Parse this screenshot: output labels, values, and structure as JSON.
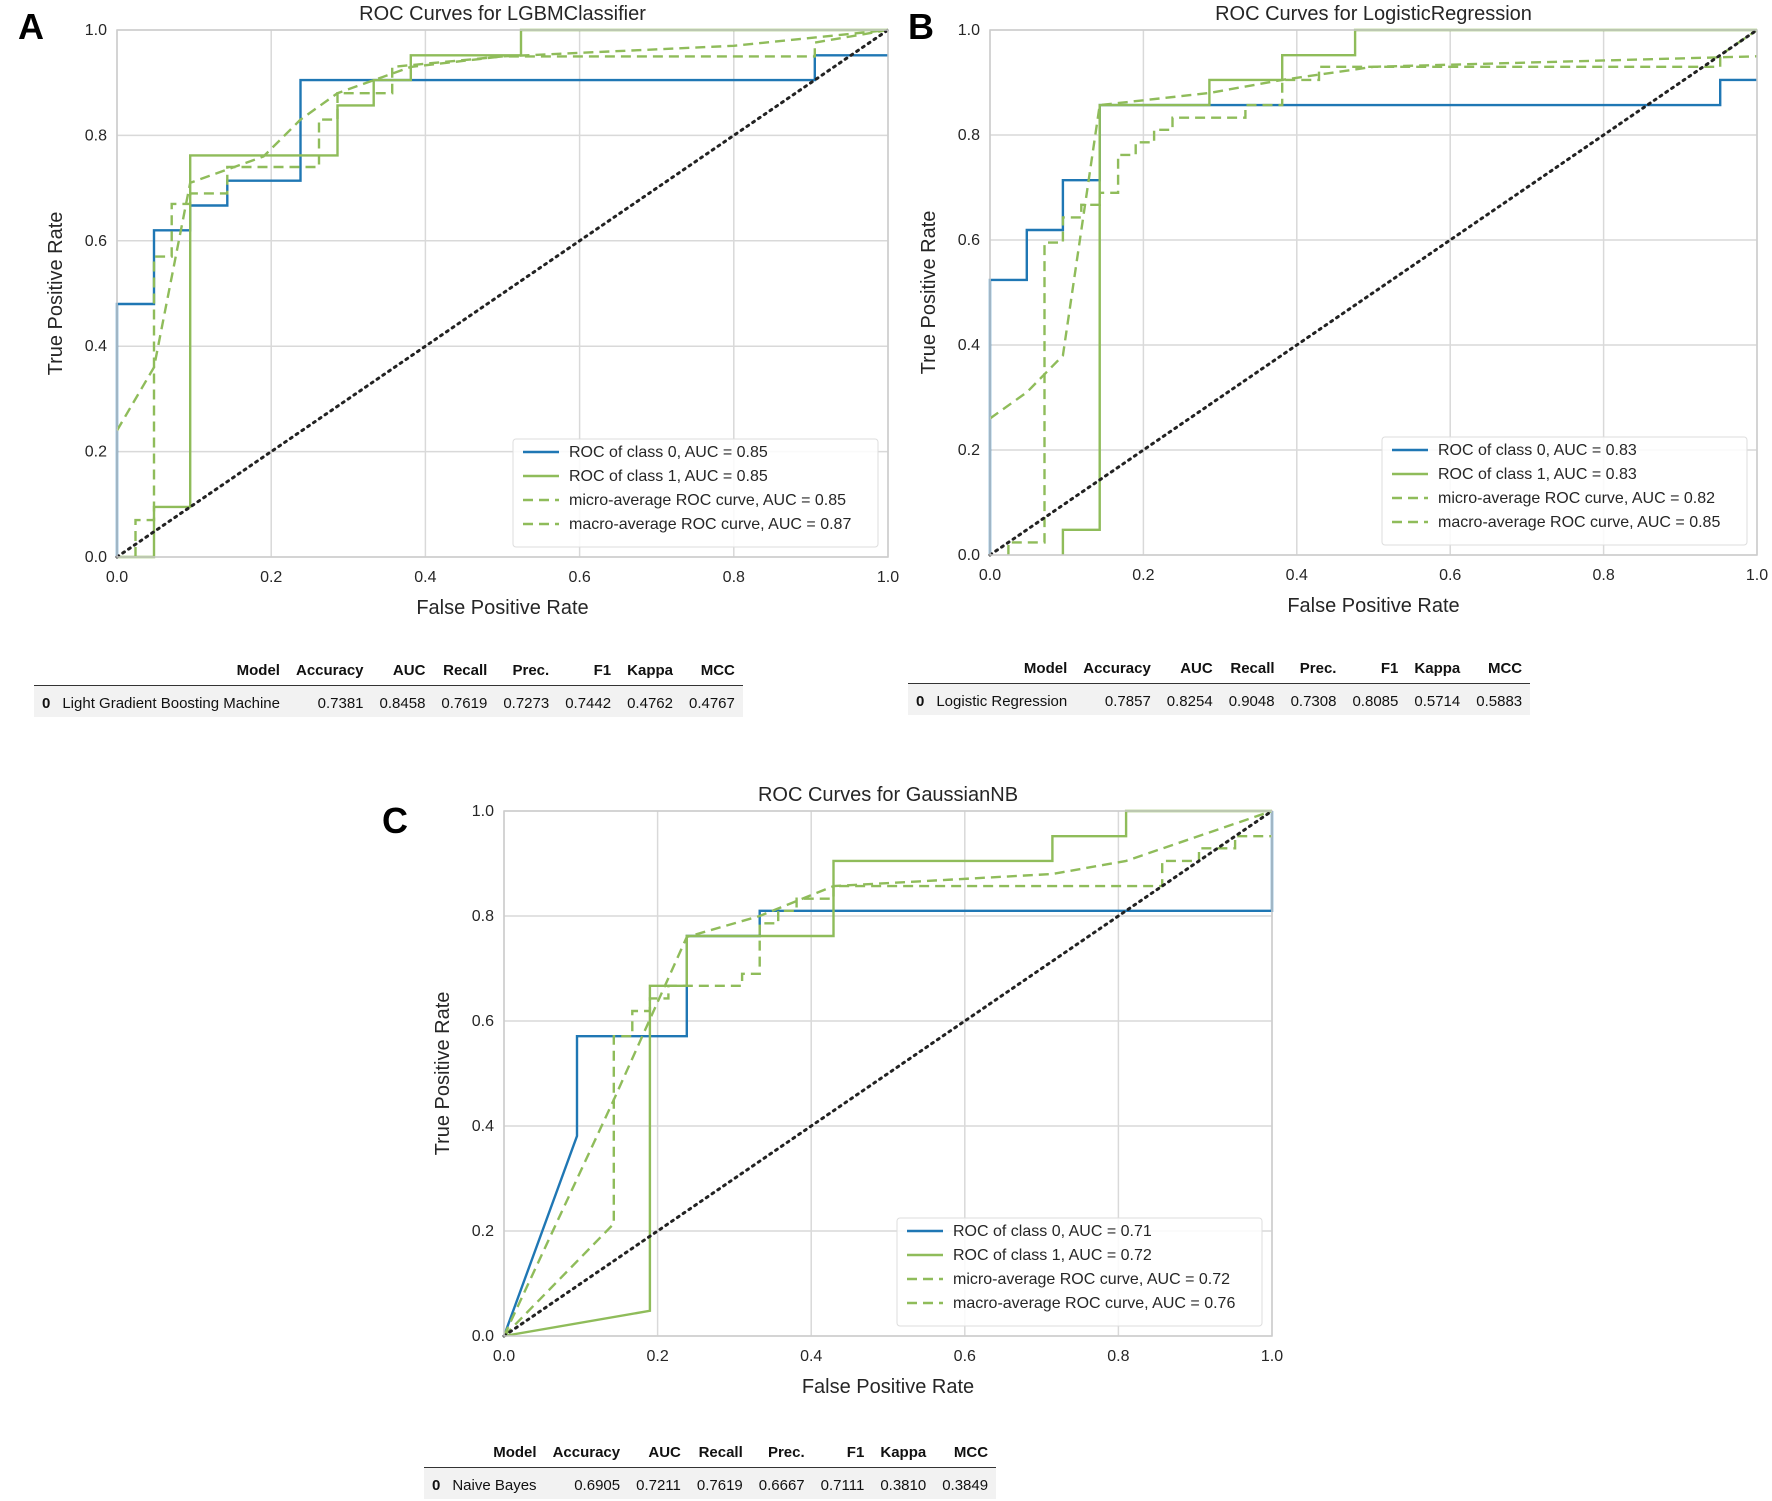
{
  "panels": [
    {
      "letter": "A"
    },
    {
      "letter": "B"
    },
    {
      "letter": "C"
    }
  ],
  "chart_data": [
    {
      "type": "line",
      "title": "ROC Curves for LGBMClassifier",
      "xlabel": "False Positive Rate",
      "ylabel": "True Positive Rate",
      "xlim": [
        0,
        1
      ],
      "ylim": [
        0,
        1
      ],
      "xticks": [
        "0.0",
        "0.2",
        "0.4",
        "0.6",
        "0.8",
        "1.0"
      ],
      "yticks": [
        "0.0",
        "0.2",
        "0.4",
        "0.6",
        "0.8",
        "1.0"
      ],
      "grid": true,
      "legend_position": "lower-right",
      "colors": {
        "class0": "#1f77b4",
        "class1": "#8fbc5a",
        "diagonal": "#222222"
      },
      "series": [
        {
          "name": "ROC of class 0, AUC = 0.85",
          "style": "solid",
          "color": "#1f77b4",
          "points": [
            [
              0,
              0
            ],
            [
              0,
              0.48
            ],
            [
              0.048,
              0.48
            ],
            [
              0.048,
              0.62
            ],
            [
              0.095,
              0.62
            ],
            [
              0.095,
              0.667
            ],
            [
              0.143,
              0.667
            ],
            [
              0.143,
              0.714
            ],
            [
              0.238,
              0.714
            ],
            [
              0.238,
              0.905
            ],
            [
              0.905,
              0.905
            ],
            [
              0.905,
              0.952
            ],
            [
              1,
              0.952
            ]
          ]
        },
        {
          "name": "ROC of class 1, AUC = 0.85",
          "style": "solid",
          "color": "#8fbc5a",
          "points": [
            [
              0,
              0
            ],
            [
              0,
              0
            ],
            [
              0.048,
              0
            ],
            [
              0.048,
              0.095
            ],
            [
              0.095,
              0.095
            ],
            [
              0.095,
              0.762
            ],
            [
              0.238,
              0.762
            ],
            [
              0.238,
              0.762
            ],
            [
              0.286,
              0.762
            ],
            [
              0.286,
              0.857
            ],
            [
              0.333,
              0.857
            ],
            [
              0.333,
              0.905
            ],
            [
              0.381,
              0.905
            ],
            [
              0.381,
              0.952
            ],
            [
              0.524,
              0.952
            ],
            [
              0.524,
              1
            ],
            [
              1,
              1
            ]
          ]
        },
        {
          "name": "micro-average ROC curve, AUC = 0.85",
          "style": "dashed",
          "color": "#8fbc5a",
          "points": [
            [
              0,
              0.24
            ],
            [
              0.048,
              0.36
            ],
            [
              0.095,
              0.71
            ],
            [
              0.19,
              0.76
            ],
            [
              0.238,
              0.83
            ],
            [
              0.286,
              0.88
            ],
            [
              0.381,
              0.93
            ],
            [
              0.5,
              0.95
            ],
            [
              0.8,
              0.97
            ],
            [
              1,
              1
            ]
          ]
        },
        {
          "name": "macro-average ROC curve, AUC = 0.87",
          "style": "dashed",
          "color": "#8fbc5a",
          "points": [
            [
              0.024,
              0
            ],
            [
              0.024,
              0.07
            ],
            [
              0.048,
              0.07
            ],
            [
              0.048,
              0.57
            ],
            [
              0.071,
              0.57
            ],
            [
              0.071,
              0.67
            ],
            [
              0.095,
              0.67
            ],
            [
              0.095,
              0.69
            ],
            [
              0.143,
              0.69
            ],
            [
              0.143,
              0.74
            ],
            [
              0.262,
              0.74
            ],
            [
              0.262,
              0.83
            ],
            [
              0.286,
              0.83
            ],
            [
              0.286,
              0.88
            ],
            [
              0.357,
              0.88
            ],
            [
              0.357,
              0.93
            ],
            [
              0.5,
              0.95
            ],
            [
              0.905,
              0.95
            ],
            [
              0.905,
              0.976
            ],
            [
              1,
              1
            ]
          ]
        },
        {
          "name": "",
          "style": "dotted",
          "color": "#222222",
          "points": [
            [
              0,
              0
            ],
            [
              1,
              1
            ]
          ]
        }
      ]
    },
    {
      "type": "line",
      "title": "ROC Curves for LogisticRegression",
      "xlabel": "False Positive Rate",
      "ylabel": "True Positive Rate",
      "xlim": [
        0,
        1
      ],
      "ylim": [
        0,
        1
      ],
      "xticks": [
        "0.0",
        "0.2",
        "0.4",
        "0.6",
        "0.8",
        "1.0"
      ],
      "yticks": [
        "0.0",
        "0.2",
        "0.4",
        "0.6",
        "0.8",
        "1.0"
      ],
      "grid": true,
      "legend_position": "lower-right",
      "colors": {
        "class0": "#1f77b4",
        "class1": "#8fbc5a",
        "diagonal": "#222222"
      },
      "series": [
        {
          "name": "ROC of class 0, AUC = 0.83",
          "style": "solid",
          "color": "#1f77b4",
          "points": [
            [
              0,
              0
            ],
            [
              0,
              0.524
            ],
            [
              0.048,
              0.524
            ],
            [
              0.048,
              0.619
            ],
            [
              0.095,
              0.619
            ],
            [
              0.095,
              0.714
            ],
            [
              0.143,
              0.714
            ],
            [
              0.143,
              0.857
            ],
            [
              0.952,
              0.857
            ],
            [
              0.952,
              0.905
            ],
            [
              1,
              0.905
            ]
          ]
        },
        {
          "name": "ROC of class 1, AUC = 0.83",
          "style": "solid",
          "color": "#8fbc5a",
          "points": [
            [
              0.095,
              0
            ],
            [
              0.095,
              0.048
            ],
            [
              0.143,
              0.048
            ],
            [
              0.143,
              0.857
            ],
            [
              0.286,
              0.857
            ],
            [
              0.286,
              0.905
            ],
            [
              0.381,
              0.905
            ],
            [
              0.381,
              0.952
            ],
            [
              0.476,
              0.952
            ],
            [
              0.476,
              1
            ],
            [
              1,
              1
            ]
          ]
        },
        {
          "name": "micro-average ROC curve, AUC = 0.82",
          "style": "dashed",
          "color": "#8fbc5a",
          "points": [
            [
              0,
              0.26
            ],
            [
              0.048,
              0.31
            ],
            [
              0.095,
              0.38
            ],
            [
              0.143,
              0.857
            ],
            [
              0.286,
              0.88
            ],
            [
              0.381,
              0.905
            ],
            [
              0.5,
              0.93
            ],
            [
              1,
              0.95
            ]
          ]
        },
        {
          "name": "macro-average ROC curve, AUC = 0.85",
          "style": "dashed",
          "color": "#8fbc5a",
          "points": [
            [
              0.024,
              0
            ],
            [
              0.024,
              0.024
            ],
            [
              0.071,
              0.024
            ],
            [
              0.071,
              0.595
            ],
            [
              0.095,
              0.595
            ],
            [
              0.095,
              0.643
            ],
            [
              0.119,
              0.643
            ],
            [
              0.119,
              0.667
            ],
            [
              0.143,
              0.667
            ],
            [
              0.143,
              0.69
            ],
            [
              0.167,
              0.69
            ],
            [
              0.167,
              0.762
            ],
            [
              0.19,
              0.762
            ],
            [
              0.19,
              0.786
            ],
            [
              0.214,
              0.786
            ],
            [
              0.214,
              0.81
            ],
            [
              0.238,
              0.81
            ],
            [
              0.238,
              0.833
            ],
            [
              0.333,
              0.833
            ],
            [
              0.333,
              0.857
            ],
            [
              0.381,
              0.857
            ],
            [
              0.381,
              0.905
            ],
            [
              0.429,
              0.905
            ],
            [
              0.429,
              0.93
            ],
            [
              0.952,
              0.93
            ],
            [
              0.952,
              0.952
            ],
            [
              1,
              1
            ]
          ]
        },
        {
          "name": "",
          "style": "dotted",
          "color": "#222222",
          "points": [
            [
              0,
              0
            ],
            [
              1,
              1
            ]
          ]
        }
      ]
    },
    {
      "type": "line",
      "title": "ROC Curves for GaussianNB",
      "xlabel": "False Positive Rate",
      "ylabel": "True Positive Rate",
      "xlim": [
        0,
        1
      ],
      "ylim": [
        0,
        1
      ],
      "xticks": [
        "0.0",
        "0.2",
        "0.4",
        "0.6",
        "0.8",
        "1.0"
      ],
      "yticks": [
        "0.0",
        "0.2",
        "0.4",
        "0.6",
        "0.8",
        "1.0"
      ],
      "grid": true,
      "legend_position": "lower-right",
      "colors": {
        "class0": "#1f77b4",
        "class1": "#8fbc5a",
        "diagonal": "#222222"
      },
      "series": [
        {
          "name": "ROC of class 0, AUC = 0.71",
          "style": "solid",
          "color": "#1f77b4",
          "points": [
            [
              0,
              0
            ],
            [
              0.095,
              0.381
            ],
            [
              0.095,
              0.571
            ],
            [
              0.238,
              0.571
            ],
            [
              0.238,
              0.762
            ],
            [
              0.333,
              0.762
            ],
            [
              0.333,
              0.81
            ],
            [
              1,
              0.81
            ],
            [
              1,
              1
            ]
          ]
        },
        {
          "name": "ROC of class 1, AUC = 0.72",
          "style": "solid",
          "color": "#8fbc5a",
          "points": [
            [
              0,
              0
            ],
            [
              0.19,
              0.048
            ],
            [
              0.19,
              0.667
            ],
            [
              0.238,
              0.667
            ],
            [
              0.238,
              0.762
            ],
            [
              0.429,
              0.762
            ],
            [
              0.429,
              0.905
            ],
            [
              0.714,
              0.905
            ],
            [
              0.714,
              0.952
            ],
            [
              0.81,
              0.952
            ],
            [
              0.81,
              1
            ],
            [
              1,
              1
            ]
          ]
        },
        {
          "name": "micro-average ROC curve, AUC = 0.72",
          "style": "dashed",
          "color": "#8fbc5a",
          "points": [
            [
              0,
              0
            ],
            [
              0.143,
              0.45
            ],
            [
              0.238,
              0.76
            ],
            [
              0.333,
              0.8
            ],
            [
              0.429,
              0.857
            ],
            [
              0.714,
              0.88
            ],
            [
              0.81,
              0.905
            ],
            [
              1,
              1
            ]
          ]
        },
        {
          "name": "macro-average ROC curve, AUC = 0.76",
          "style": "dashed",
          "color": "#8fbc5a",
          "points": [
            [
              0,
              0
            ],
            [
              0.143,
              0.214
            ],
            [
              0.143,
              0.571
            ],
            [
              0.167,
              0.571
            ],
            [
              0.167,
              0.619
            ],
            [
              0.19,
              0.619
            ],
            [
              0.19,
              0.643
            ],
            [
              0.214,
              0.643
            ],
            [
              0.214,
              0.667
            ],
            [
              0.31,
              0.667
            ],
            [
              0.31,
              0.69
            ],
            [
              0.333,
              0.69
            ],
            [
              0.333,
              0.786
            ],
            [
              0.357,
              0.786
            ],
            [
              0.357,
              0.81
            ],
            [
              0.381,
              0.81
            ],
            [
              0.381,
              0.833
            ],
            [
              0.429,
              0.833
            ],
            [
              0.429,
              0.857
            ],
            [
              0.857,
              0.857
            ],
            [
              0.857,
              0.905
            ],
            [
              0.905,
              0.905
            ],
            [
              0.905,
              0.929
            ],
            [
              0.952,
              0.929
            ],
            [
              0.952,
              0.952
            ],
            [
              1,
              0.952
            ]
          ]
        },
        {
          "name": "",
          "style": "dotted",
          "color": "#222222",
          "points": [
            [
              0,
              0
            ],
            [
              1,
              1
            ]
          ]
        }
      ]
    }
  ],
  "tables": [
    {
      "headers": [
        "Model",
        "Accuracy",
        "AUC",
        "Recall",
        "Prec.",
        "F1",
        "Kappa",
        "MCC"
      ],
      "row": {
        "index": "0",
        "cells": [
          "Light Gradient Boosting Machine",
          "0.7381",
          "0.8458",
          "0.7619",
          "0.7273",
          "0.7442",
          "0.4762",
          "0.4767"
        ]
      }
    },
    {
      "headers": [
        "Model",
        "Accuracy",
        "AUC",
        "Recall",
        "Prec.",
        "F1",
        "Kappa",
        "MCC"
      ],
      "row": {
        "index": "0",
        "cells": [
          "Logistic Regression",
          "0.7857",
          "0.8254",
          "0.9048",
          "0.7308",
          "0.8085",
          "0.5714",
          "0.5883"
        ]
      }
    },
    {
      "headers": [
        "Model",
        "Accuracy",
        "AUC",
        "Recall",
        "Prec.",
        "F1",
        "Kappa",
        "MCC"
      ],
      "row": {
        "index": "0",
        "cells": [
          "Naive Bayes",
          "0.6905",
          "0.7211",
          "0.7619",
          "0.6667",
          "0.7111",
          "0.3810",
          "0.3849"
        ]
      }
    }
  ]
}
